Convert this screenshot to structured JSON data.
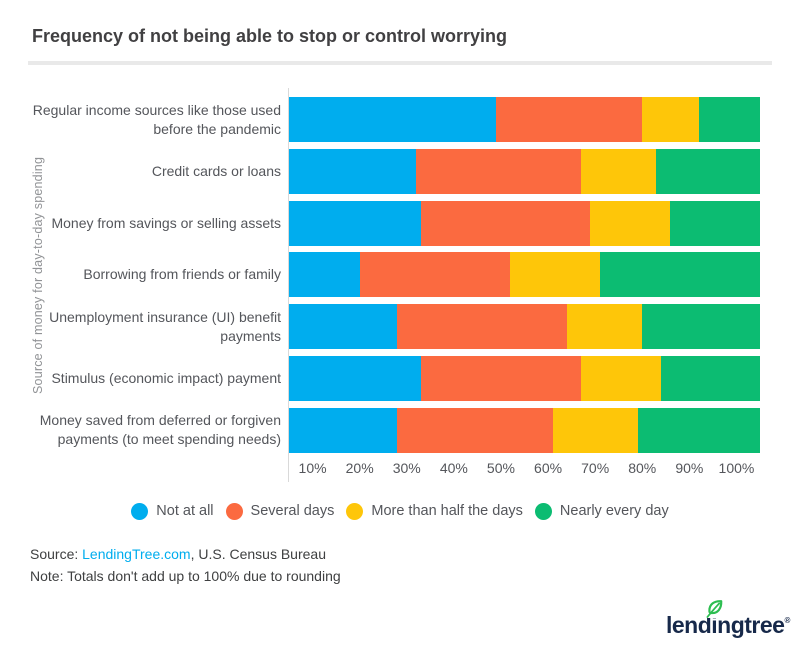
{
  "title": "Frequency of not being able to stop or control worrying",
  "chart_data": {
    "type": "bar",
    "orientation": "horizontal",
    "stacked": true,
    "title": "Frequency of not being able to stop or control worrying",
    "xlabel": "",
    "ylabel": "Source of money for day-to-day spending",
    "xlim": [
      0,
      100
    ],
    "grid": false,
    "legend_position": "bottom",
    "x_ticks": [
      "10%",
      "20%",
      "30%",
      "40%",
      "50%",
      "60%",
      "70%",
      "80%",
      "90%",
      "100%"
    ],
    "categories": [
      "Regular income sources like those used before the pandemic",
      "Credit cards or loans",
      "Money from savings or selling assets",
      "Borrowing from friends or family",
      "Unemployment insurance (UI) benefit payments",
      "Stimulus (economic impact) payment",
      "Money saved from deferred or forgiven payments (to meet spending needs)"
    ],
    "series": [
      {
        "name": "Not at all",
        "color": "#00adee",
        "values": [
          44,
          27,
          28,
          15,
          23,
          28,
          23
        ]
      },
      {
        "name": "Several days",
        "color": "#fb6a40",
        "values": [
          31,
          35,
          36,
          32,
          36,
          34,
          33
        ]
      },
      {
        "name": "More than half the days",
        "color": "#fec609",
        "values": [
          12,
          16,
          17,
          19,
          16,
          17,
          18
        ]
      },
      {
        "name": "Nearly every day",
        "color": "#0cbc72",
        "values": [
          13,
          22,
          19,
          34,
          25,
          21,
          26
        ]
      }
    ]
  },
  "source": {
    "prefix": "Source: ",
    "link": "LendingTree.com",
    "suffix": ", U.S. Census Bureau"
  },
  "note": "Note: Totals don't add up to 100% due to rounding",
  "logo": {
    "pre": "lend",
    "i": "i",
    "post": "ngtree",
    "reg": "®",
    "leaf_color": "#2dbe50",
    "navy_color": "#17294a"
  },
  "colors": {
    "title_text": "#414042",
    "axis_text": "#54565b",
    "axis_title_text": "#919396",
    "divider": "#e9e9e9",
    "axis_line": "#d9d9d9",
    "link": "#00adee"
  }
}
